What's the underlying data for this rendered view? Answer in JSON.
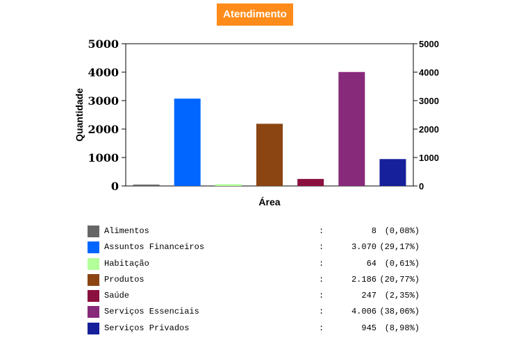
{
  "chart_data": {
    "type": "bar",
    "title": "Atendimento",
    "xlabel": "Área",
    "ylabel": "Quantidade",
    "ylim": [
      0,
      5000
    ],
    "yticks": [
      0,
      1000,
      2000,
      3000,
      4000,
      5000
    ],
    "grid": false,
    "legend_position": "bottom",
    "categories": [
      "Alimentos",
      "Assuntos Financeiros",
      "Habitação",
      "Produtos",
      "Saúde",
      "Serviços Essenciais",
      "Serviços Privados"
    ],
    "values": [
      8,
      3070,
      64,
      2186,
      247,
      4006,
      945
    ],
    "colors": [
      "#666666",
      "#0066ff",
      "#b3ff99",
      "#8b4513",
      "#8b1040",
      "#882a7a",
      "#16209a"
    ],
    "value_labels": [
      "8",
      "3.070",
      "64",
      "2.186",
      "247",
      "4.006",
      "945"
    ],
    "percent_labels": [
      "(0,08%)",
      "(29,17%)",
      "(0,61%)",
      "(20,77%)",
      "(2,35%)",
      "(38,06%)",
      "(8,98%)"
    ]
  }
}
